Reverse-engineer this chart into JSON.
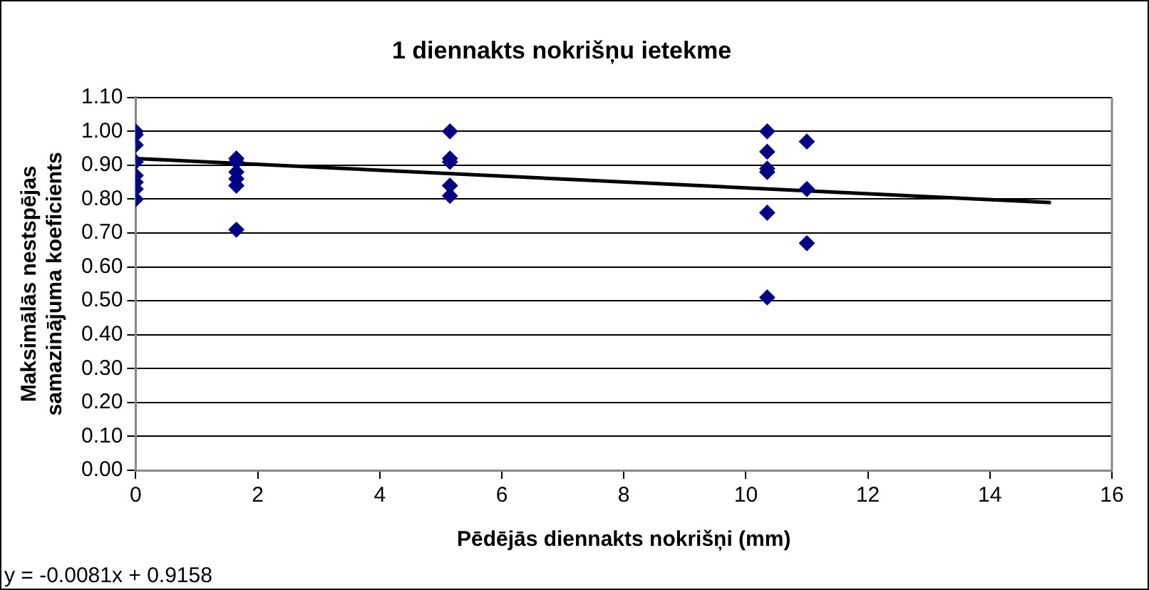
{
  "chart_data": {
    "type": "scatter",
    "title": "1 diennakts nokrišņu ietekme",
    "xlabel": "Pēdējās diennakts nokrišņi (mm)",
    "ylabel": "Maksimālās nestspējas samazinājuma koeficients",
    "series": [
      {
        "type": "scatter",
        "color": "#000080",
        "marker": "diamond",
        "x": [
          0,
          0,
          0,
          0,
          0,
          0,
          0,
          0,
          1.65,
          1.65,
          1.65,
          1.65,
          1.65,
          1.65,
          5.15,
          5.15,
          5.15,
          5.15,
          5.15,
          10.35,
          10.35,
          10.35,
          10.35,
          10.35,
          10.35,
          11,
          11,
          11
        ],
        "values": [
          1.0,
          0.99,
          0.96,
          0.91,
          0.87,
          0.85,
          0.83,
          0.8,
          0.92,
          0.91,
          0.88,
          0.86,
          0.84,
          0.71,
          1.0,
          0.92,
          0.91,
          0.84,
          0.81,
          1.0,
          0.94,
          0.89,
          0.88,
          0.76,
          0.51,
          0.97,
          0.83,
          0.67
        ]
      },
      {
        "type": "line",
        "color": "#000000",
        "marker": "none",
        "line_style": "solid",
        "x": [
          0,
          15
        ],
        "values": [
          0.92,
          0.79
        ]
      }
    ],
    "xlim": [
      0,
      16
    ],
    "xticks": [
      0,
      2,
      4,
      6,
      8,
      10,
      12,
      14,
      16
    ],
    "ylim": [
      0,
      1.1
    ],
    "yticks": [
      {
        "value": 0,
        "label": "0.00"
      },
      {
        "value": 0.1,
        "label": "0.10"
      },
      {
        "value": 0.2,
        "label": "0.20"
      },
      {
        "value": 0.3,
        "label": "0.30"
      },
      {
        "value": 0.4,
        "label": "0.40"
      },
      {
        "value": 0.5,
        "label": "0.50"
      },
      {
        "value": 0.6,
        "label": "0.60"
      },
      {
        "value": 0.7,
        "label": "0.70"
      },
      {
        "value": 0.8,
        "label": "0.80"
      },
      {
        "value": 0.9,
        "label": "0.90"
      },
      {
        "value": 1.0,
        "label": "1.00"
      },
      {
        "value": 1.1,
        "label": "1.10"
      }
    ],
    "grid": "y",
    "legend": false,
    "annotations": [
      "y = -0.0081x + 0.9158"
    ]
  }
}
